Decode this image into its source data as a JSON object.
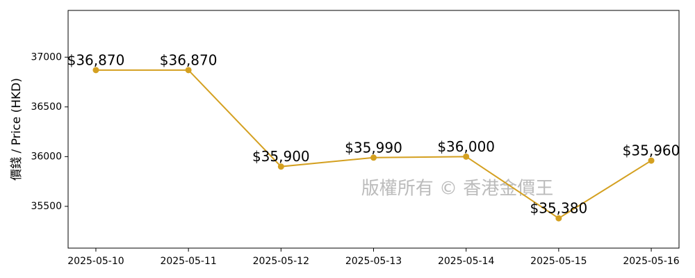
{
  "chart_data": {
    "type": "line",
    "y_label": "價錢 / Price (HKD)",
    "watermark": "版權所有 © 香港金價王",
    "categories": [
      "2025-05-10",
      "2025-05-11",
      "2025-05-12",
      "2025-05-13",
      "2025-05-14",
      "2025-05-15",
      "2025-05-16"
    ],
    "series": [
      {
        "color": "#d4a020",
        "values": [
          36870,
          36870,
          35900,
          35990,
          36000,
          35380,
          35960
        ],
        "value_labels": [
          "$36,870",
          "$36,870",
          "$35,900",
          "$35,990",
          "$36,000",
          "$35,380",
          "$35,960"
        ]
      }
    ],
    "ylim": [
      35080,
      37470
    ],
    "yticks": [
      35500,
      36000,
      36500,
      37000
    ],
    "grid": false
  }
}
